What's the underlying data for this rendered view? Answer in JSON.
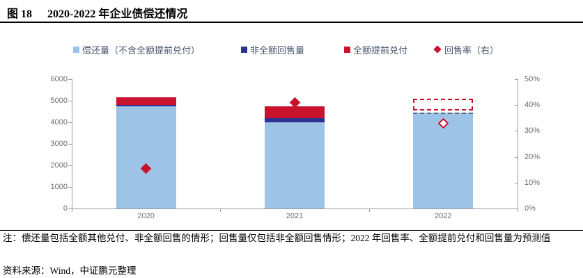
{
  "title": {
    "figure_label": "图 18",
    "text": "2020-2022 年企业债偿还情况"
  },
  "legend": {
    "items": [
      {
        "label": "偿还量（不含全额提前兑付）",
        "marker": "square",
        "color": "#9DC3E6"
      },
      {
        "label": "非全额回售量",
        "marker": "square",
        "color": "#2B3291"
      },
      {
        "label": "全额提前兑付",
        "marker": "square",
        "color": "#C9122C"
      },
      {
        "label": "回售率（右）",
        "marker": "diamond",
        "color": "#C9122C"
      }
    ]
  },
  "chart_data": {
    "type": "bar",
    "stacked": true,
    "title": "2020-2022 年企业债偿还情况",
    "categories": [
      "2020",
      "2021",
      "2022"
    ],
    "series": [
      {
        "name": "偿还量（不含全额提前兑付）",
        "axis": "left",
        "color": "#9DC3E6",
        "values": [
          4750,
          4000,
          4450
        ]
      },
      {
        "name": "非全额回售量",
        "axis": "left",
        "color": "#2B3291",
        "values": [
          70,
          200,
          110
        ]
      },
      {
        "name": "全额提前兑付",
        "axis": "left",
        "color": "#C9122C",
        "values": [
          330,
          550,
          540
        ]
      },
      {
        "name": "回售率（右）",
        "axis": "right",
        "type": "scatter",
        "color": "#C9122C",
        "values_pct": [
          15.5,
          41,
          33
        ]
      }
    ],
    "left_axis": {
      "min": 0,
      "max": 6000,
      "ticks": [
        "0",
        "1000",
        "2000",
        "3000",
        "4000",
        "5000",
        "6000"
      ]
    },
    "right_axis": {
      "min_label": "0%",
      "max_label": "50%",
      "max_value": 50,
      "ticks": [
        "0%",
        "10%",
        "20%",
        "30%",
        "40%",
        "50%"
      ]
    },
    "grid": false,
    "legend_position": "top",
    "forecast_note": "2022 年数值为预测值，以虚线表示；2022 回售率标记为空心菱形",
    "bars": [
      {
        "category": "2020",
        "segments": [
          {
            "series": 0,
            "value": 4750,
            "style": "solid"
          },
          {
            "series": 1,
            "value": 70,
            "style": "solid"
          },
          {
            "series": 2,
            "value": 330,
            "style": "solid"
          }
        ],
        "marker": {
          "pct": 15.5,
          "style": "filled"
        }
      },
      {
        "category": "2021",
        "segments": [
          {
            "series": 0,
            "value": 4000,
            "style": "solid"
          },
          {
            "series": 1,
            "value": 200,
            "style": "solid"
          },
          {
            "series": 2,
            "value": 550,
            "style": "solid"
          }
        ],
        "marker": {
          "pct": 41,
          "style": "filled"
        }
      },
      {
        "category": "2022",
        "segments": [
          {
            "series": 0,
            "value": 4450,
            "style": "dashed-top"
          },
          {
            "series": 1,
            "value": 110,
            "style": "gap"
          },
          {
            "series": 2,
            "value": 540,
            "style": "dashed-outline"
          }
        ],
        "marker": {
          "pct": 33,
          "style": "hollow"
        }
      }
    ]
  },
  "note": "注：偿还量包括全额其他兑付、非全额回售的情形；回售量仅包括非全额回售情形；2022 年回售率、全额提前兑付和回售量为预测值",
  "source": "资料来源：Wind，中证鹏元整理",
  "colors": {
    "bar_light_blue": "#9DC3E6",
    "bar_navy": "#2B3291",
    "bar_red": "#C9122C",
    "axis_line": "#9A9A9A",
    "axis_label_gray": "#6B6B6B",
    "legend_text": "#44546A",
    "forecast_top_dash": "#5B6B80"
  }
}
